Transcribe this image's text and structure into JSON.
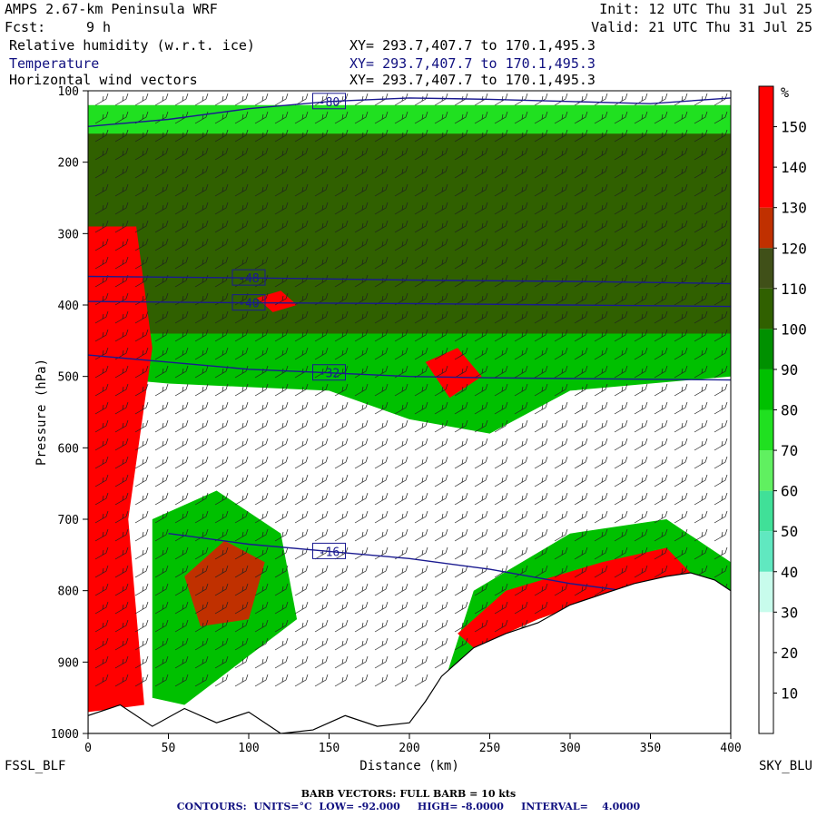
{
  "header": {
    "title": "AMPS 2.67-km Peninsula WRF",
    "fcst_label": "Fcst:",
    "fcst_value": "9 h",
    "init": "Init: 12 UTC Thu 31 Jul 25",
    "valid": "Valid: 21 UTC Thu 31 Jul 25",
    "fields": [
      {
        "name": "Relative humidity (w.r.t. ice)",
        "xy": "XY= 293.7,407.7 to 170.1,495.3",
        "color": "#000000"
      },
      {
        "name": "Temperature",
        "xy": "XY= 293.7,407.7 to 170.1,495.3",
        "color": "#101080"
      },
      {
        "name": "Horizontal wind vectors",
        "xy": "XY= 293.7,407.7 to 170.1,495.3",
        "color": "#000000"
      }
    ]
  },
  "footer": {
    "barb_note": "BARB VECTORS:  FULL BARB = 10 kts",
    "contours": "CONTOURS:  UNITS=°C  LOW= -92.000     HIGH= -8.0000     INTERVAL=    4.0000"
  },
  "chart_data": {
    "type": "heatmap",
    "title": "",
    "xlabel": "Distance (km)",
    "ylabel": "Pressure (hPa)",
    "xlim": [
      0,
      400
    ],
    "ylim": [
      1000,
      100
    ],
    "x_ticks": [
      "0",
      "50",
      "100",
      "150",
      "200",
      "250",
      "300",
      "350",
      "400"
    ],
    "y_ticks": [
      "100",
      "200",
      "300",
      "400",
      "500",
      "600",
      "700",
      "800",
      "900",
      "1000"
    ],
    "left_end_label": "FSSL_BLF",
    "right_end_label": "SKY_BLU",
    "colorbar": {
      "unit": "%",
      "ticks": [
        "10",
        "20",
        "30",
        "40",
        "50",
        "60",
        "70",
        "80",
        "90",
        "100",
        "110",
        "120",
        "130",
        "140",
        "150"
      ],
      "bands": [
        {
          "from": 0,
          "to": 30,
          "color": "#ffffff"
        },
        {
          "from": 30,
          "to": 40,
          "color": "#c8fcec"
        },
        {
          "from": 40,
          "to": 50,
          "color": "#60e8c0"
        },
        {
          "from": 50,
          "to": 60,
          "color": "#40e098"
        },
        {
          "from": 60,
          "to": 70,
          "color": "#60f060"
        },
        {
          "from": 70,
          "to": 80,
          "color": "#20e020"
        },
        {
          "from": 80,
          "to": 90,
          "color": "#00c000"
        },
        {
          "from": 90,
          "to": 100,
          "color": "#009000"
        },
        {
          "from": 100,
          "to": 110,
          "color": "#306000"
        },
        {
          "from": 110,
          "to": 120,
          "color": "#405018"
        },
        {
          "from": 120,
          "to": 130,
          "color": "#c03000"
        },
        {
          "from": 130,
          "to": 160,
          "color": "#ff0000"
        }
      ]
    },
    "regions": [
      {
        "label": "upper moist layer",
        "rh": 75,
        "points": [
          [
            0,
            120
          ],
          [
            400,
            120
          ],
          [
            400,
            250
          ],
          [
            0,
            250
          ]
        ]
      },
      {
        "label": "saturated band",
        "rh": 105,
        "points": [
          [
            0,
            160
          ],
          [
            400,
            160
          ],
          [
            400,
            460
          ],
          [
            360,
            470
          ],
          [
            300,
            480
          ],
          [
            250,
            560
          ],
          [
            200,
            520
          ],
          [
            150,
            490
          ],
          [
            100,
            480
          ],
          [
            50,
            470
          ],
          [
            0,
            460
          ]
        ]
      },
      {
        "label": "mid moist",
        "rh": 85,
        "points": [
          [
            0,
            440
          ],
          [
            400,
            440
          ],
          [
            400,
            500
          ],
          [
            300,
            520
          ],
          [
            250,
            580
          ],
          [
            200,
            560
          ],
          [
            150,
            520
          ],
          [
            50,
            510
          ],
          [
            0,
            500
          ]
        ]
      },
      {
        "label": "red column west",
        "rh": 135,
        "points": [
          [
            0,
            290
          ],
          [
            30,
            290
          ],
          [
            40,
            460
          ],
          [
            25,
            700
          ],
          [
            35,
            960
          ],
          [
            0,
            970
          ]
        ]
      },
      {
        "label": "red patch",
        "rh": 135,
        "points": [
          [
            105,
            390
          ],
          [
            120,
            380
          ],
          [
            130,
            400
          ],
          [
            115,
            410
          ]
        ]
      },
      {
        "label": "red patch mid",
        "rh": 135,
        "points": [
          [
            210,
            480
          ],
          [
            230,
            460
          ],
          [
            245,
            500
          ],
          [
            225,
            530
          ]
        ]
      },
      {
        "label": "low-level moist west",
        "rh": 85,
        "points": [
          [
            40,
            700
          ],
          [
            80,
            660
          ],
          [
            120,
            720
          ],
          [
            130,
            840
          ],
          [
            60,
            960
          ],
          [
            40,
            950
          ]
        ]
      },
      {
        "label": "low-level red",
        "rh": 125,
        "points": [
          [
            60,
            780
          ],
          [
            85,
            730
          ],
          [
            110,
            760
          ],
          [
            100,
            840
          ],
          [
            70,
            850
          ]
        ]
      },
      {
        "label": "slope moist",
        "rh": 85,
        "points": [
          [
            220,
            940
          ],
          [
            240,
            800
          ],
          [
            300,
            720
          ],
          [
            360,
            700
          ],
          [
            400,
            760
          ],
          [
            400,
            800
          ],
          [
            370,
            775
          ],
          [
            330,
            800
          ],
          [
            280,
            840
          ],
          [
            240,
            880
          ]
        ]
      },
      {
        "label": "slope red",
        "rh": 135,
        "points": [
          [
            230,
            860
          ],
          [
            260,
            800
          ],
          [
            320,
            760
          ],
          [
            360,
            740
          ],
          [
            375,
            775
          ],
          [
            330,
            800
          ],
          [
            280,
            840
          ],
          [
            240,
            880
          ]
        ]
      }
    ],
    "terrain": [
      [
        0,
        975
      ],
      [
        20,
        960
      ],
      [
        40,
        990
      ],
      [
        60,
        965
      ],
      [
        80,
        985
      ],
      [
        100,
        970
      ],
      [
        120,
        1000
      ],
      [
        140,
        995
      ],
      [
        160,
        975
      ],
      [
        180,
        990
      ],
      [
        200,
        985
      ],
      [
        210,
        955
      ],
      [
        220,
        920
      ],
      [
        240,
        880
      ],
      [
        260,
        860
      ],
      [
        280,
        845
      ],
      [
        300,
        820
      ],
      [
        320,
        805
      ],
      [
        340,
        790
      ],
      [
        360,
        780
      ],
      [
        375,
        775
      ],
      [
        390,
        785
      ],
      [
        400,
        800
      ]
    ],
    "temperature_contours": [
      {
        "value": -80,
        "label": "-80",
        "points": [
          [
            0,
            150
          ],
          [
            50,
            140
          ],
          [
            100,
            125
          ],
          [
            150,
            115
          ],
          [
            200,
            110
          ],
          [
            250,
            112
          ],
          [
            300,
            115
          ],
          [
            350,
            118
          ],
          [
            400,
            110
          ]
        ]
      },
      {
        "value": -48,
        "label": "-48",
        "points": [
          [
            0,
            360
          ],
          [
            100,
            362
          ],
          [
            200,
            365
          ],
          [
            300,
            367
          ],
          [
            400,
            370
          ]
        ]
      },
      {
        "value": -40,
        "label": "-40",
        "points": [
          [
            0,
            395
          ],
          [
            100,
            397
          ],
          [
            200,
            398
          ],
          [
            300,
            400
          ],
          [
            400,
            402
          ]
        ]
      },
      {
        "value": -32,
        "label": "-32",
        "points": [
          [
            0,
            470
          ],
          [
            50,
            480
          ],
          [
            100,
            490
          ],
          [
            150,
            495
          ],
          [
            200,
            500
          ],
          [
            250,
            502
          ],
          [
            300,
            503
          ],
          [
            350,
            504
          ],
          [
            400,
            505
          ]
        ]
      },
      {
        "value": -16,
        "label": "-16",
        "points": [
          [
            50,
            720
          ],
          [
            100,
            735
          ],
          [
            150,
            745
          ],
          [
            200,
            755
          ],
          [
            250,
            770
          ],
          [
            300,
            790
          ],
          [
            350,
            805
          ],
          [
            400,
            810
          ]
        ]
      }
    ]
  }
}
